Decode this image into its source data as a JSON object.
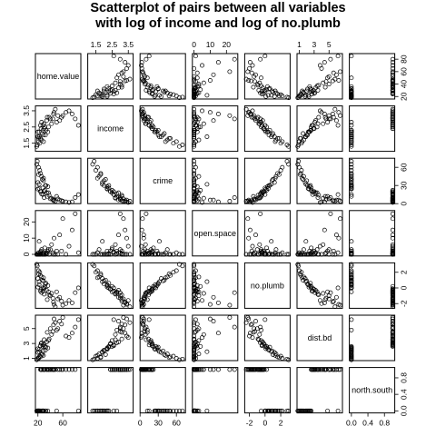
{
  "chart_data": {
    "type": "scatter",
    "title_lines": [
      "Scatterplot of pairs between all variables",
      "with log of income and log of no.plumb"
    ],
    "variables": [
      "home.value",
      "income",
      "crime",
      "open.space",
      "no.plumb",
      "dist.bd",
      "north.south"
    ],
    "ranges": [
      [
        16,
        89
      ],
      [
        1.0,
        3.8
      ],
      [
        0,
        75
      ],
      [
        -1,
        27
      ],
      [
        -2.6,
        3.2
      ],
      [
        0.7,
        6.8
      ],
      [
        -0.05,
        1.05
      ]
    ],
    "axis_ticks": {
      "top": [
        {
          "var": 1,
          "ticks": [
            {
              "v": 1.5,
              "label": "1.5"
            },
            {
              "v": 2.5,
              "label": "2.5"
            },
            {
              "v": 3.5,
              "label": "3.5"
            }
          ]
        },
        {
          "var": 3,
          "ticks": [
            {
              "v": 0,
              "label": "0"
            },
            {
              "v": 10,
              "label": "10"
            },
            {
              "v": 20,
              "label": "20"
            }
          ]
        },
        {
          "var": 5,
          "ticks": [
            {
              "v": 1,
              "label": "1"
            },
            {
              "v": 3,
              "label": "3"
            },
            {
              "v": 5,
              "label": "5"
            }
          ]
        }
      ],
      "bottom": [
        {
          "var": 0,
          "ticks": [
            {
              "v": 20,
              "label": "20"
            },
            {
              "v": 60,
              "label": "60"
            }
          ]
        },
        {
          "var": 2,
          "ticks": [
            {
              "v": 0,
              "label": "0"
            },
            {
              "v": 30,
              "label": "30"
            },
            {
              "v": 60,
              "label": "60"
            }
          ]
        },
        {
          "var": 4,
          "ticks": [
            {
              "v": -2,
              "label": "-2"
            },
            {
              "v": 0,
              "label": "0"
            },
            {
              "v": 2,
              "label": "2"
            }
          ]
        },
        {
          "var": 6,
          "ticks": [
            {
              "v": 0.0,
              "label": "0.0"
            },
            {
              "v": 0.4,
              "label": "0.4"
            },
            {
              "v": 0.8,
              "label": "0.8"
            }
          ]
        }
      ],
      "left": [
        {
          "var": 1,
          "ticks": [
            {
              "v": 1.5,
              "label": "1.5"
            },
            {
              "v": 2.5,
              "label": "2.5"
            },
            {
              "v": 3.5,
              "label": "3.5"
            }
          ]
        },
        {
          "var": 3,
          "ticks": [
            {
              "v": 0,
              "label": "0"
            },
            {
              "v": 10,
              "label": "10"
            },
            {
              "v": 20,
              "label": "20"
            }
          ]
        },
        {
          "var": 5,
          "ticks": [
            {
              "v": 1,
              "label": "1"
            },
            {
              "v": 3,
              "label": "3"
            },
            {
              "v": 5,
              "label": "5"
            }
          ]
        }
      ],
      "right": [
        {
          "var": 0,
          "ticks": [
            {
              "v": 20,
              "label": "20"
            },
            {
              "v": 40,
              "label": "40"
            },
            {
              "v": 60,
              "label": "60"
            },
            {
              "v": 80,
              "label": "80"
            }
          ]
        },
        {
          "var": 2,
          "ticks": [
            {
              "v": 0,
              "label": "0"
            },
            {
              "v": 30,
              "label": "30"
            },
            {
              "v": 60,
              "label": "60"
            }
          ]
        },
        {
          "var": 4,
          "ticks": [
            {
              "v": -2,
              "label": "-2"
            },
            {
              "v": 0,
              "label": "0"
            },
            {
              "v": 2,
              "label": "2"
            }
          ]
        },
        {
          "var": 6,
          "ticks": [
            {
              "v": 0.0,
              "label": "0.0"
            },
            {
              "v": 0.4,
              "label": "0.4"
            },
            {
              "v": 0.8,
              "label": "0.8"
            }
          ]
        }
      ]
    },
    "observations": [
      [
        35,
        3.1,
        12,
        0.5,
        -1.5,
        4.5,
        1
      ],
      [
        30,
        2.7,
        10,
        0.0,
        -0.8,
        3.5,
        1
      ],
      [
        28,
        2.6,
        15,
        1.0,
        -0.4,
        2.8,
        1
      ],
      [
        22,
        2.2,
        25,
        0.0,
        0.4,
        2.2,
        0
      ],
      [
        20,
        1.9,
        35,
        0.0,
        1.2,
        1.8,
        0
      ],
      [
        25,
        2.4,
        20,
        2.0,
        -0.2,
        3.0,
        1
      ],
      [
        40,
        3.0,
        8,
        3.0,
        -1.0,
        5.0,
        1
      ],
      [
        45,
        3.3,
        5,
        0.0,
        -1.8,
        5.5,
        1
      ],
      [
        55,
        2.9,
        6,
        12.0,
        -1.2,
        6.0,
        1
      ],
      [
        60,
        3.2,
        4,
        22.0,
        -2.2,
        6.5,
        1
      ],
      [
        65,
        3.4,
        3,
        0.0,
        -2.0,
        4.0,
        1
      ],
      [
        70,
        3.5,
        2,
        5.0,
        -1.6,
        3.8,
        1
      ],
      [
        80,
        3.0,
        10,
        25.0,
        -0.6,
        5.2,
        1
      ],
      [
        85,
        2.6,
        15,
        1.0,
        0.0,
        6.2,
        0
      ],
      [
        50,
        2.8,
        12,
        2.0,
        -0.5,
        4.8,
        0
      ],
      [
        33,
        2.3,
        30,
        0.5,
        0.6,
        2.5,
        0
      ],
      [
        27,
        2.1,
        40,
        0.0,
        1.0,
        1.5,
        0
      ],
      [
        24,
        1.8,
        50,
        0.0,
        1.6,
        1.2,
        0
      ],
      [
        21,
        1.6,
        60,
        1.0,
        2.2,
        1.0,
        0
      ],
      [
        19,
        1.4,
        70,
        0.0,
        2.8,
        0.9,
        0
      ],
      [
        23,
        1.5,
        55,
        0.0,
        2.0,
        1.3,
        0
      ],
      [
        26,
        1.7,
        45,
        3.0,
        1.4,
        1.6,
        0
      ],
      [
        29,
        2.0,
        38,
        0.0,
        0.9,
        2.0,
        0
      ],
      [
        31,
        2.5,
        22,
        4.0,
        0.2,
        2.6,
        1
      ],
      [
        34,
        2.9,
        18,
        1.0,
        -0.3,
        3.2,
        1
      ],
      [
        38,
        3.1,
        14,
        0.0,
        -0.9,
        3.6,
        1
      ],
      [
        42,
        2.7,
        9,
        6.0,
        -0.7,
        4.2,
        1
      ],
      [
        48,
        3.6,
        4,
        0.0,
        -2.4,
        5.8,
        1
      ],
      [
        36,
        2.2,
        28,
        2.0,
        0.3,
        2.4,
        0
      ],
      [
        18,
        1.3,
        65,
        0.0,
        3.0,
        0.8,
        0
      ],
      [
        22,
        1.9,
        32,
        8.0,
        0.8,
        1.9,
        0
      ],
      [
        30,
        2.4,
        20,
        0.0,
        -0.1,
        2.9,
        1
      ],
      [
        44,
        3.0,
        7,
        1.0,
        -1.3,
        4.6,
        1
      ],
      [
        58,
        3.1,
        5,
        2.0,
        -1.7,
        5.6,
        1
      ],
      [
        26,
        2.8,
        16,
        0.5,
        -0.6,
        3.1,
        1
      ],
      [
        20,
        2.2,
        24,
        0.0,
        0.1,
        2.3,
        0
      ],
      [
        24,
        2.6,
        20,
        1.5,
        -0.4,
        2.7,
        1
      ],
      [
        32,
        2.0,
        30,
        0.0,
        0.5,
        2.1,
        0
      ],
      [
        29,
        1.6,
        42,
        1.0,
        1.3,
        1.4,
        0
      ],
      [
        46,
        3.4,
        6,
        10.0,
        -2.1,
        6.3,
        1
      ],
      [
        52,
        3.2,
        8,
        0.0,
        -1.4,
        5.0,
        1
      ],
      [
        37,
        2.5,
        18,
        3.0,
        -0.5,
        3.4,
        1
      ],
      [
        28,
        2.3,
        26,
        0.0,
        0.0,
        2.6,
        0
      ],
      [
        75,
        3.3,
        3,
        15.0,
        -1.9,
        4.4,
        1
      ],
      [
        21,
        1.8,
        48,
        0.0,
        1.8,
        1.1,
        0
      ]
    ]
  }
}
